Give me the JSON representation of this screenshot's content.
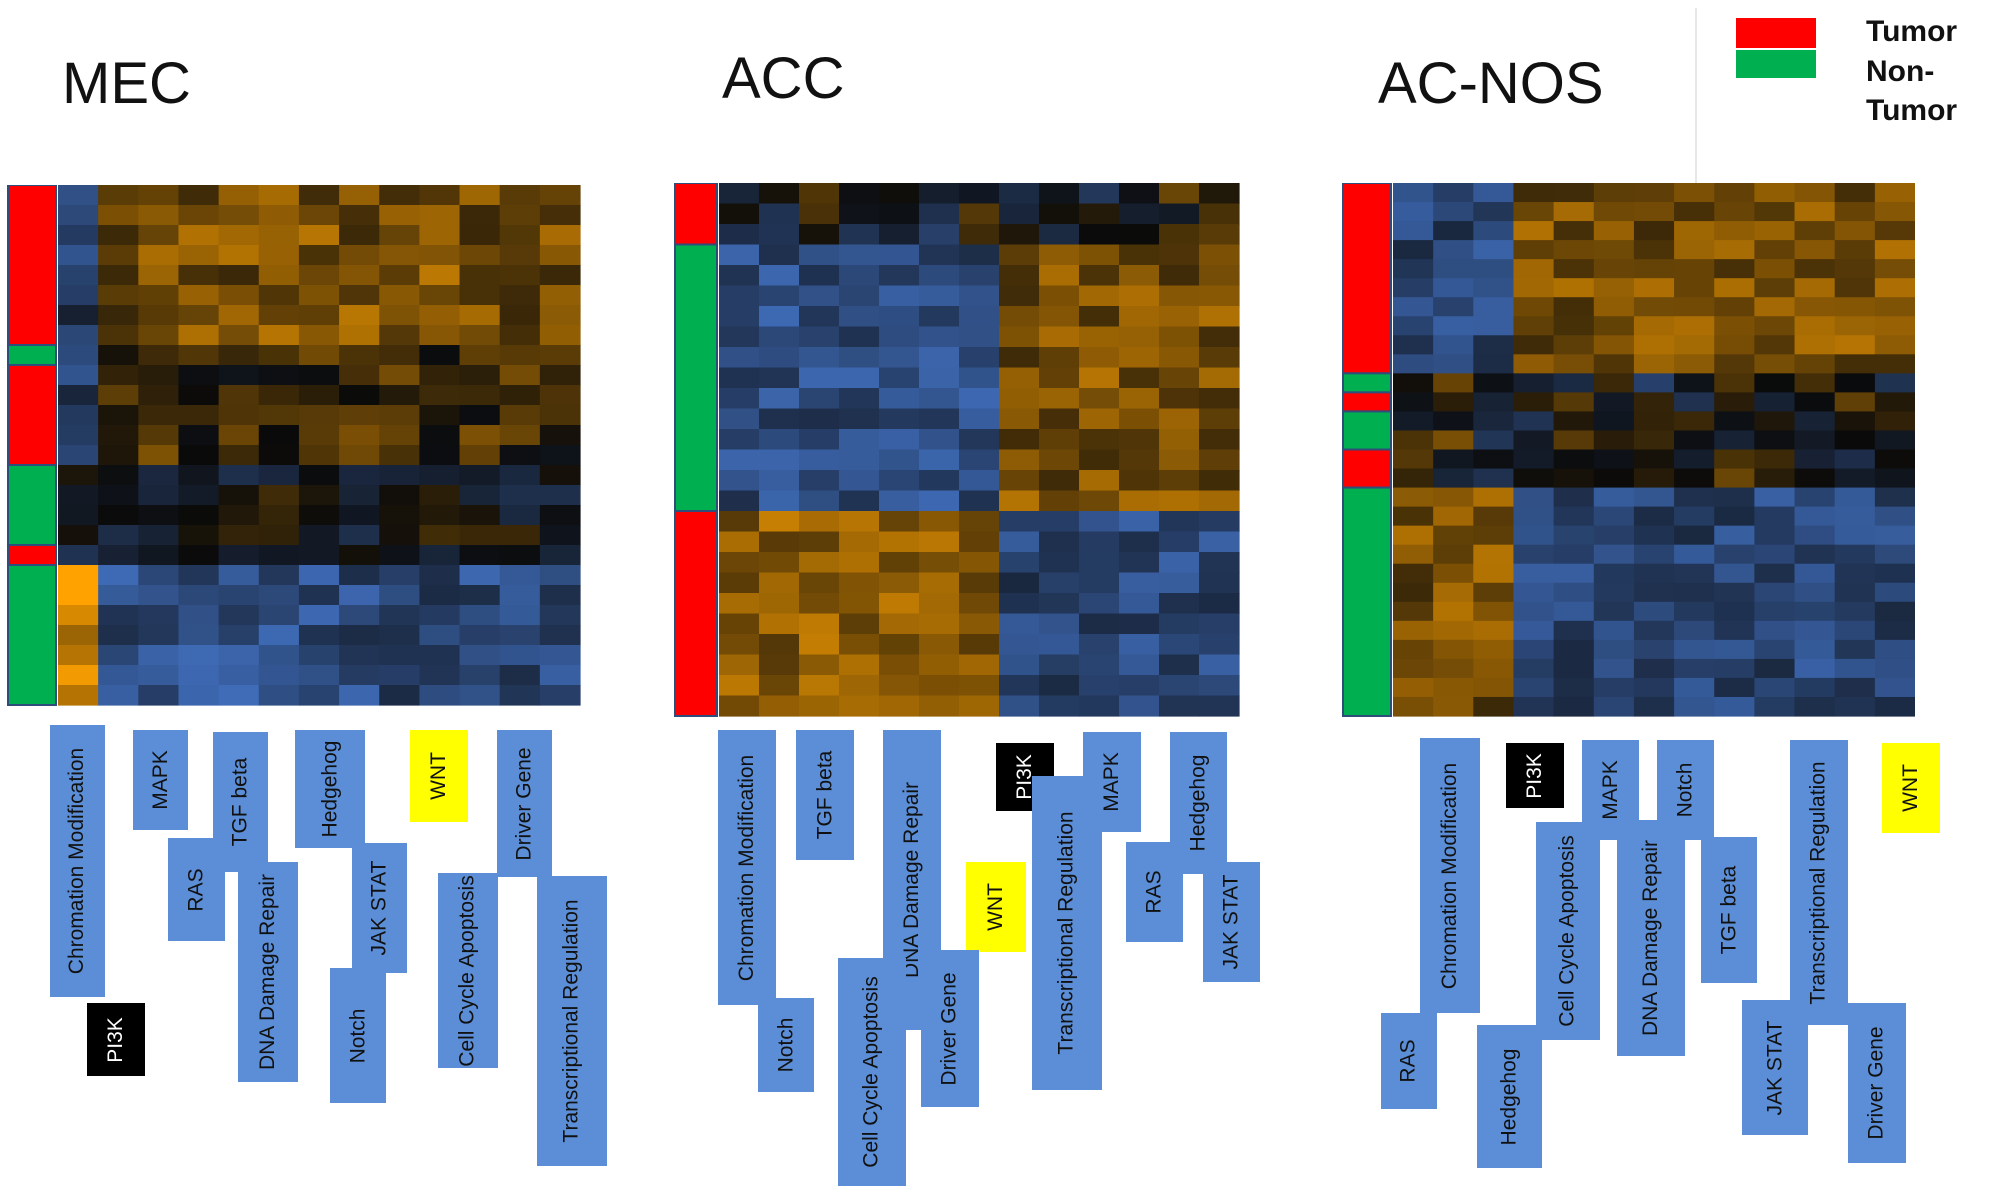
{
  "legend": {
    "items": [
      {
        "label": "Tumor",
        "color": "#ff0000"
      },
      {
        "label": "Non-\nTumor",
        "color": "#00b050"
      }
    ]
  },
  "colors": {
    "tumor": "#ff0000",
    "non_tumor": "#00b050",
    "label_box": "#5b8ed6",
    "highlight_yellow": "#ffff00",
    "highlight_black": "#000000"
  },
  "chart_data": [
    {
      "type": "heatmap",
      "title": "MEC",
      "colorscale": [
        "#4a80dc",
        "#0a0a0a",
        "#ffa200"
      ],
      "sample_groups": [
        "Tumor",
        "Non-Tumor",
        "Tumor",
        "Non-Tumor",
        "Tumor",
        "Non-Tumor"
      ],
      "pathways": [
        {
          "label": "Chromation Modification",
          "highlight": "none"
        },
        {
          "label": "MAPK",
          "highlight": "none"
        },
        {
          "label": "RAS",
          "highlight": "none"
        },
        {
          "label": "TGF beta",
          "highlight": "none"
        },
        {
          "label": "DNA Damage Repair",
          "highlight": "none"
        },
        {
          "label": "Hedgehog",
          "highlight": "none"
        },
        {
          "label": "JAK STAT",
          "highlight": "none"
        },
        {
          "label": "Notch",
          "highlight": "none"
        },
        {
          "label": "WNT",
          "highlight": "yellow"
        },
        {
          "label": "Cell Cycle Apoptosis",
          "highlight": "none"
        },
        {
          "label": "Driver Gene",
          "highlight": "none"
        },
        {
          "label": "Transcriptional Regulation",
          "highlight": "none"
        },
        {
          "label": "PI3K",
          "highlight": "black"
        }
      ]
    },
    {
      "type": "heatmap",
      "title": "ACC",
      "colorscale": [
        "#4a80dc",
        "#0a0a0a",
        "#ffa200"
      ],
      "sample_groups": [
        "Tumor",
        "Non-Tumor",
        "Tumor"
      ],
      "pathways": [
        {
          "label": "Chromation Modification",
          "highlight": "none"
        },
        {
          "label": "TGF beta",
          "highlight": "none"
        },
        {
          "label": "DNA Damage Repair",
          "highlight": "none"
        },
        {
          "label": "PI3K",
          "highlight": "black"
        },
        {
          "label": "MAPK",
          "highlight": "none"
        },
        {
          "label": "Hedgehog",
          "highlight": "none"
        },
        {
          "label": "WNT",
          "highlight": "yellow"
        },
        {
          "label": "Transcriptional Regulation",
          "highlight": "none"
        },
        {
          "label": "RAS",
          "highlight": "none"
        },
        {
          "label": "JAK STAT",
          "highlight": "none"
        },
        {
          "label": "Notch",
          "highlight": "none"
        },
        {
          "label": "Cell Cycle Apoptosis",
          "highlight": "none"
        },
        {
          "label": "Driver Gene",
          "highlight": "none"
        }
      ]
    },
    {
      "type": "heatmap",
      "title": "AC-NOS",
      "colorscale": [
        "#4a80dc",
        "#0a0a0a",
        "#ffa200"
      ],
      "sample_groups": [
        "Tumor",
        "Non-Tumor",
        "Tumor",
        "Non-Tumor",
        "Tumor",
        "Non-Tumor"
      ],
      "pathways": [
        {
          "label": "PI3K",
          "highlight": "black"
        },
        {
          "label": "MAPK",
          "highlight": "none"
        },
        {
          "label": "Notch",
          "highlight": "none"
        },
        {
          "label": "Transcriptional Regulation",
          "highlight": "none"
        },
        {
          "label": "WNT",
          "highlight": "yellow"
        },
        {
          "label": "Chromation Modification",
          "highlight": "none"
        },
        {
          "label": "Cell Cycle Apoptosis",
          "highlight": "none"
        },
        {
          "label": "DNA Damage Repair",
          "highlight": "none"
        },
        {
          "label": "TGF beta",
          "highlight": "none"
        },
        {
          "label": "RAS",
          "highlight": "none"
        },
        {
          "label": "Hedgehog",
          "highlight": "none"
        },
        {
          "label": "JAK STAT",
          "highlight": "none"
        },
        {
          "label": "Driver Gene",
          "highlight": "none"
        }
      ]
    }
  ]
}
